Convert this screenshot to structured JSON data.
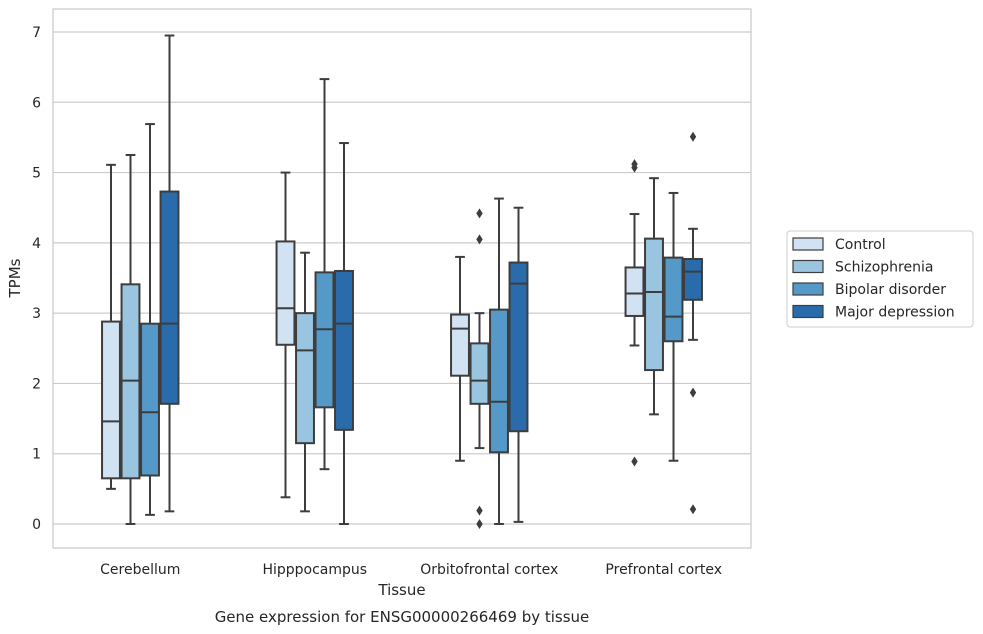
{
  "chart_data": {
    "type": "box",
    "xlabel": "Tissue",
    "ylabel": "TPMs",
    "caption": "Gene expression for ENSG00000266469 by tissue",
    "ylim": [
      -0.33,
      7.33
    ],
    "yticks": [
      0,
      1,
      2,
      3,
      4,
      5,
      6,
      7
    ],
    "grid": "horizontal",
    "legend_position": "right-outside",
    "categories": [
      "Cerebellum",
      "Hipppocampus",
      "Orbitofrontal cortex",
      "Prefrontal cortex"
    ],
    "series": [
      {
        "name": "Control",
        "color": "#d1e2f2",
        "boxes": [
          {
            "whislo": 0.5,
            "q1": 0.65,
            "med": 1.46,
            "q3": 2.88,
            "whishi": 5.11,
            "fliers": []
          },
          {
            "whislo": 0.38,
            "q1": 2.55,
            "med": 3.07,
            "q3": 4.02,
            "whishi": 5.0,
            "fliers": []
          },
          {
            "whislo": 0.9,
            "q1": 2.11,
            "med": 2.78,
            "q3": 2.98,
            "whishi": 3.8,
            "fliers": []
          },
          {
            "whislo": 2.54,
            "q1": 2.96,
            "med": 3.28,
            "q3": 3.65,
            "whishi": 4.41,
            "fliers": [
              0.89,
              5.07,
              5.12
            ]
          }
        ]
      },
      {
        "name": "Schizophrenia",
        "color": "#9ac5e0",
        "boxes": [
          {
            "whislo": 0.0,
            "q1": 0.65,
            "med": 2.04,
            "q3": 3.41,
            "whishi": 5.25,
            "fliers": []
          },
          {
            "whislo": 0.18,
            "q1": 1.15,
            "med": 2.47,
            "q3": 3.0,
            "whishi": 3.86,
            "fliers": []
          },
          {
            "whislo": 1.08,
            "q1": 1.71,
            "med": 2.04,
            "q3": 2.57,
            "whishi": 3.0,
            "fliers": [
              0.0,
              0.19,
              4.05,
              4.42
            ]
          },
          {
            "whislo": 1.56,
            "q1": 2.19,
            "med": 3.3,
            "q3": 4.06,
            "whishi": 4.92,
            "fliers": []
          }
        ]
      },
      {
        "name": "Bipolar disorder",
        "color": "#5599c9",
        "boxes": [
          {
            "whislo": 0.13,
            "q1": 0.69,
            "med": 1.59,
            "q3": 2.85,
            "whishi": 5.69,
            "fliers": []
          },
          {
            "whislo": 0.78,
            "q1": 1.66,
            "med": 2.77,
            "q3": 3.58,
            "whishi": 6.33,
            "fliers": []
          },
          {
            "whislo": 0.0,
            "q1": 1.02,
            "med": 1.74,
            "q3": 3.05,
            "whishi": 4.63,
            "fliers": []
          },
          {
            "whislo": 0.9,
            "q1": 2.6,
            "med": 2.95,
            "q3": 3.79,
            "whishi": 4.71,
            "fliers": []
          }
        ]
      },
      {
        "name": "Major depression",
        "color": "#2a6cab",
        "boxes": [
          {
            "whislo": 0.18,
            "q1": 1.71,
            "med": 2.85,
            "q3": 4.73,
            "whishi": 6.95,
            "fliers": []
          },
          {
            "whislo": 0.0,
            "q1": 1.34,
            "med": 2.85,
            "q3": 3.6,
            "whishi": 5.42,
            "fliers": []
          },
          {
            "whislo": 0.03,
            "q1": 1.32,
            "med": 3.42,
            "q3": 3.72,
            "whishi": 4.5,
            "fliers": []
          },
          {
            "whislo": 2.62,
            "q1": 3.19,
            "med": 3.59,
            "q3": 3.77,
            "whishi": 4.2,
            "fliers": [
              0.21,
              1.87,
              5.51
            ]
          }
        ]
      }
    ]
  }
}
